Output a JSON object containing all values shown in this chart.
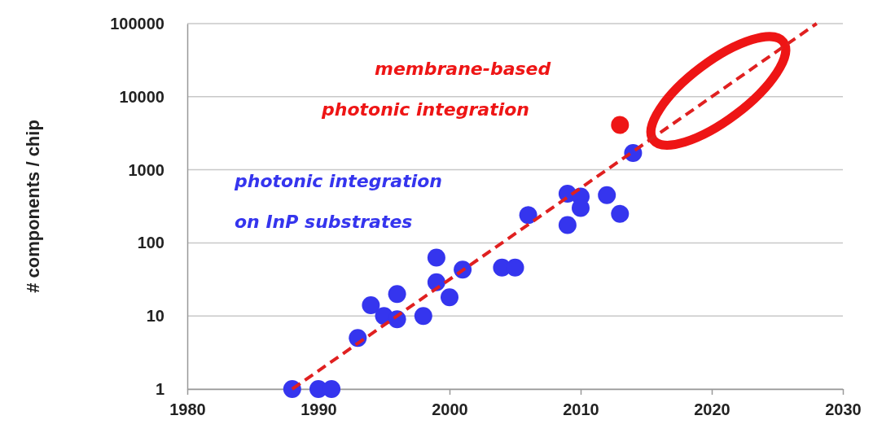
{
  "chart_data": {
    "type": "scatter",
    "ylabel": "# components / chip",
    "log": "y",
    "grid": "y",
    "marker": "circle",
    "xlim": [
      1980,
      2030
    ],
    "xticks": [
      1980,
      1990,
      2000,
      2010,
      2020,
      2030
    ],
    "ylim": [
      1,
      100000
    ],
    "yticks": [
      1,
      10,
      100,
      1000,
      10000,
      100000
    ],
    "series": [
      {
        "color": "#3535ee",
        "x": [
          1988,
          1990,
          1991,
          1993,
          1994,
          1995,
          1996,
          1996,
          1998,
          1999,
          1999,
          2000,
          2001,
          2004,
          2005,
          2006,
          2009,
          2009,
          2010,
          2010,
          2012,
          2013,
          2014
        ],
        "values": [
          1,
          1,
          1,
          5,
          14,
          10,
          9,
          20,
          10,
          63,
          29,
          18,
          43,
          46,
          46,
          240,
          470,
          175,
          430,
          300,
          450,
          250,
          1700
        ]
      },
      {
        "color": "#ee1515",
        "x": [
          2013
        ],
        "values": [
          4100
        ]
      },
      {
        "type": "line",
        "color": "#e02020",
        "line_style": "dashed",
        "marker": "none",
        "x": [
          1988,
          2028
        ],
        "values": [
          1,
          100000
        ]
      }
    ],
    "annotations": [
      "photonic integration\non InP substrates",
      "membrane-based\nphotonic integration"
    ]
  }
}
